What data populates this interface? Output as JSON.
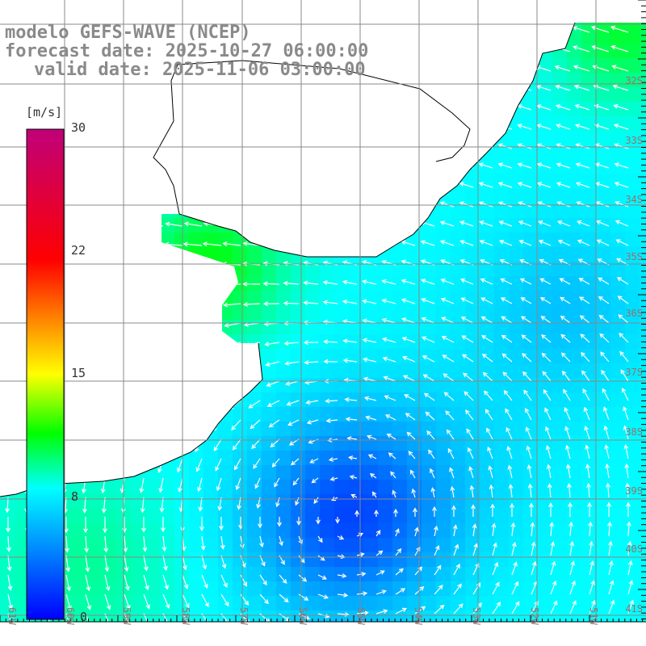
{
  "title": {
    "model": "modelo GEFS-WAVE (NCEP)",
    "forecast": "forecast date: 2025-10-27 06:00:00",
    "valid": "valid date: 2025-11-06 03:00:00"
  },
  "colorbar": {
    "unit": "[m/s]",
    "labels": [
      "30",
      "22",
      "15",
      "8",
      "0"
    ],
    "stops": [
      {
        "value": 0,
        "color": "#0000ff"
      },
      {
        "value": 8,
        "color": "#00ffff"
      },
      {
        "value": 15,
        "color": "#ffff00"
      },
      {
        "value": 11.5,
        "color": "#00ff00"
      },
      {
        "value": 22,
        "color": "#ff0000"
      },
      {
        "value": 30,
        "color": "#c0007a"
      }
    ]
  },
  "lat_labels": [
    "32S",
    "33S",
    "34S",
    "35S",
    "36S",
    "37S",
    "38S",
    "39S",
    "40S",
    "41S"
  ],
  "lon_labels": [
    "61W",
    "60W",
    "59W",
    "58W",
    "57W",
    "56W",
    "55W",
    "54W",
    "53W",
    "52W",
    "51W"
  ]
}
